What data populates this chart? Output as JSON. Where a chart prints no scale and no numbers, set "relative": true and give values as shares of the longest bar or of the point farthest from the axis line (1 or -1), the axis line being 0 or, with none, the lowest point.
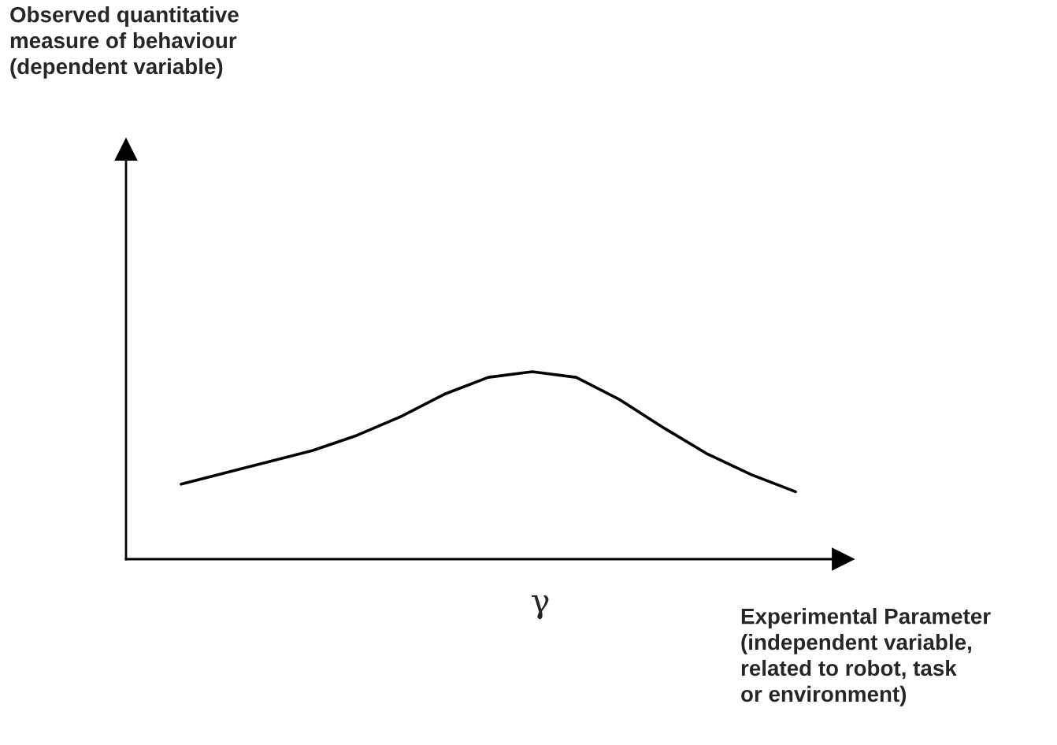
{
  "chart_data": {
    "type": "line",
    "relative": true,
    "xlabel": "γ",
    "annotations": [
      "Observed quantitative\nmeasure of behaviour\n(dependent variable)",
      "Experimental Parameter\n(independent variable,\nrelated to robot, task\nor environment)"
    ],
    "categories": [
      null,
      null,
      null,
      null,
      null,
      null,
      null,
      null,
      null,
      null,
      null,
      null,
      null,
      null,
      null
    ],
    "series": [
      {
        "color": "#000000",
        "values": [
          0.4,
          0.46,
          0.52,
          0.58,
          0.66,
          0.76,
          0.88,
          0.97,
          1.0,
          0.97,
          0.85,
          0.7,
          0.56,
          0.45,
          0.36
        ]
      }
    ]
  }
}
